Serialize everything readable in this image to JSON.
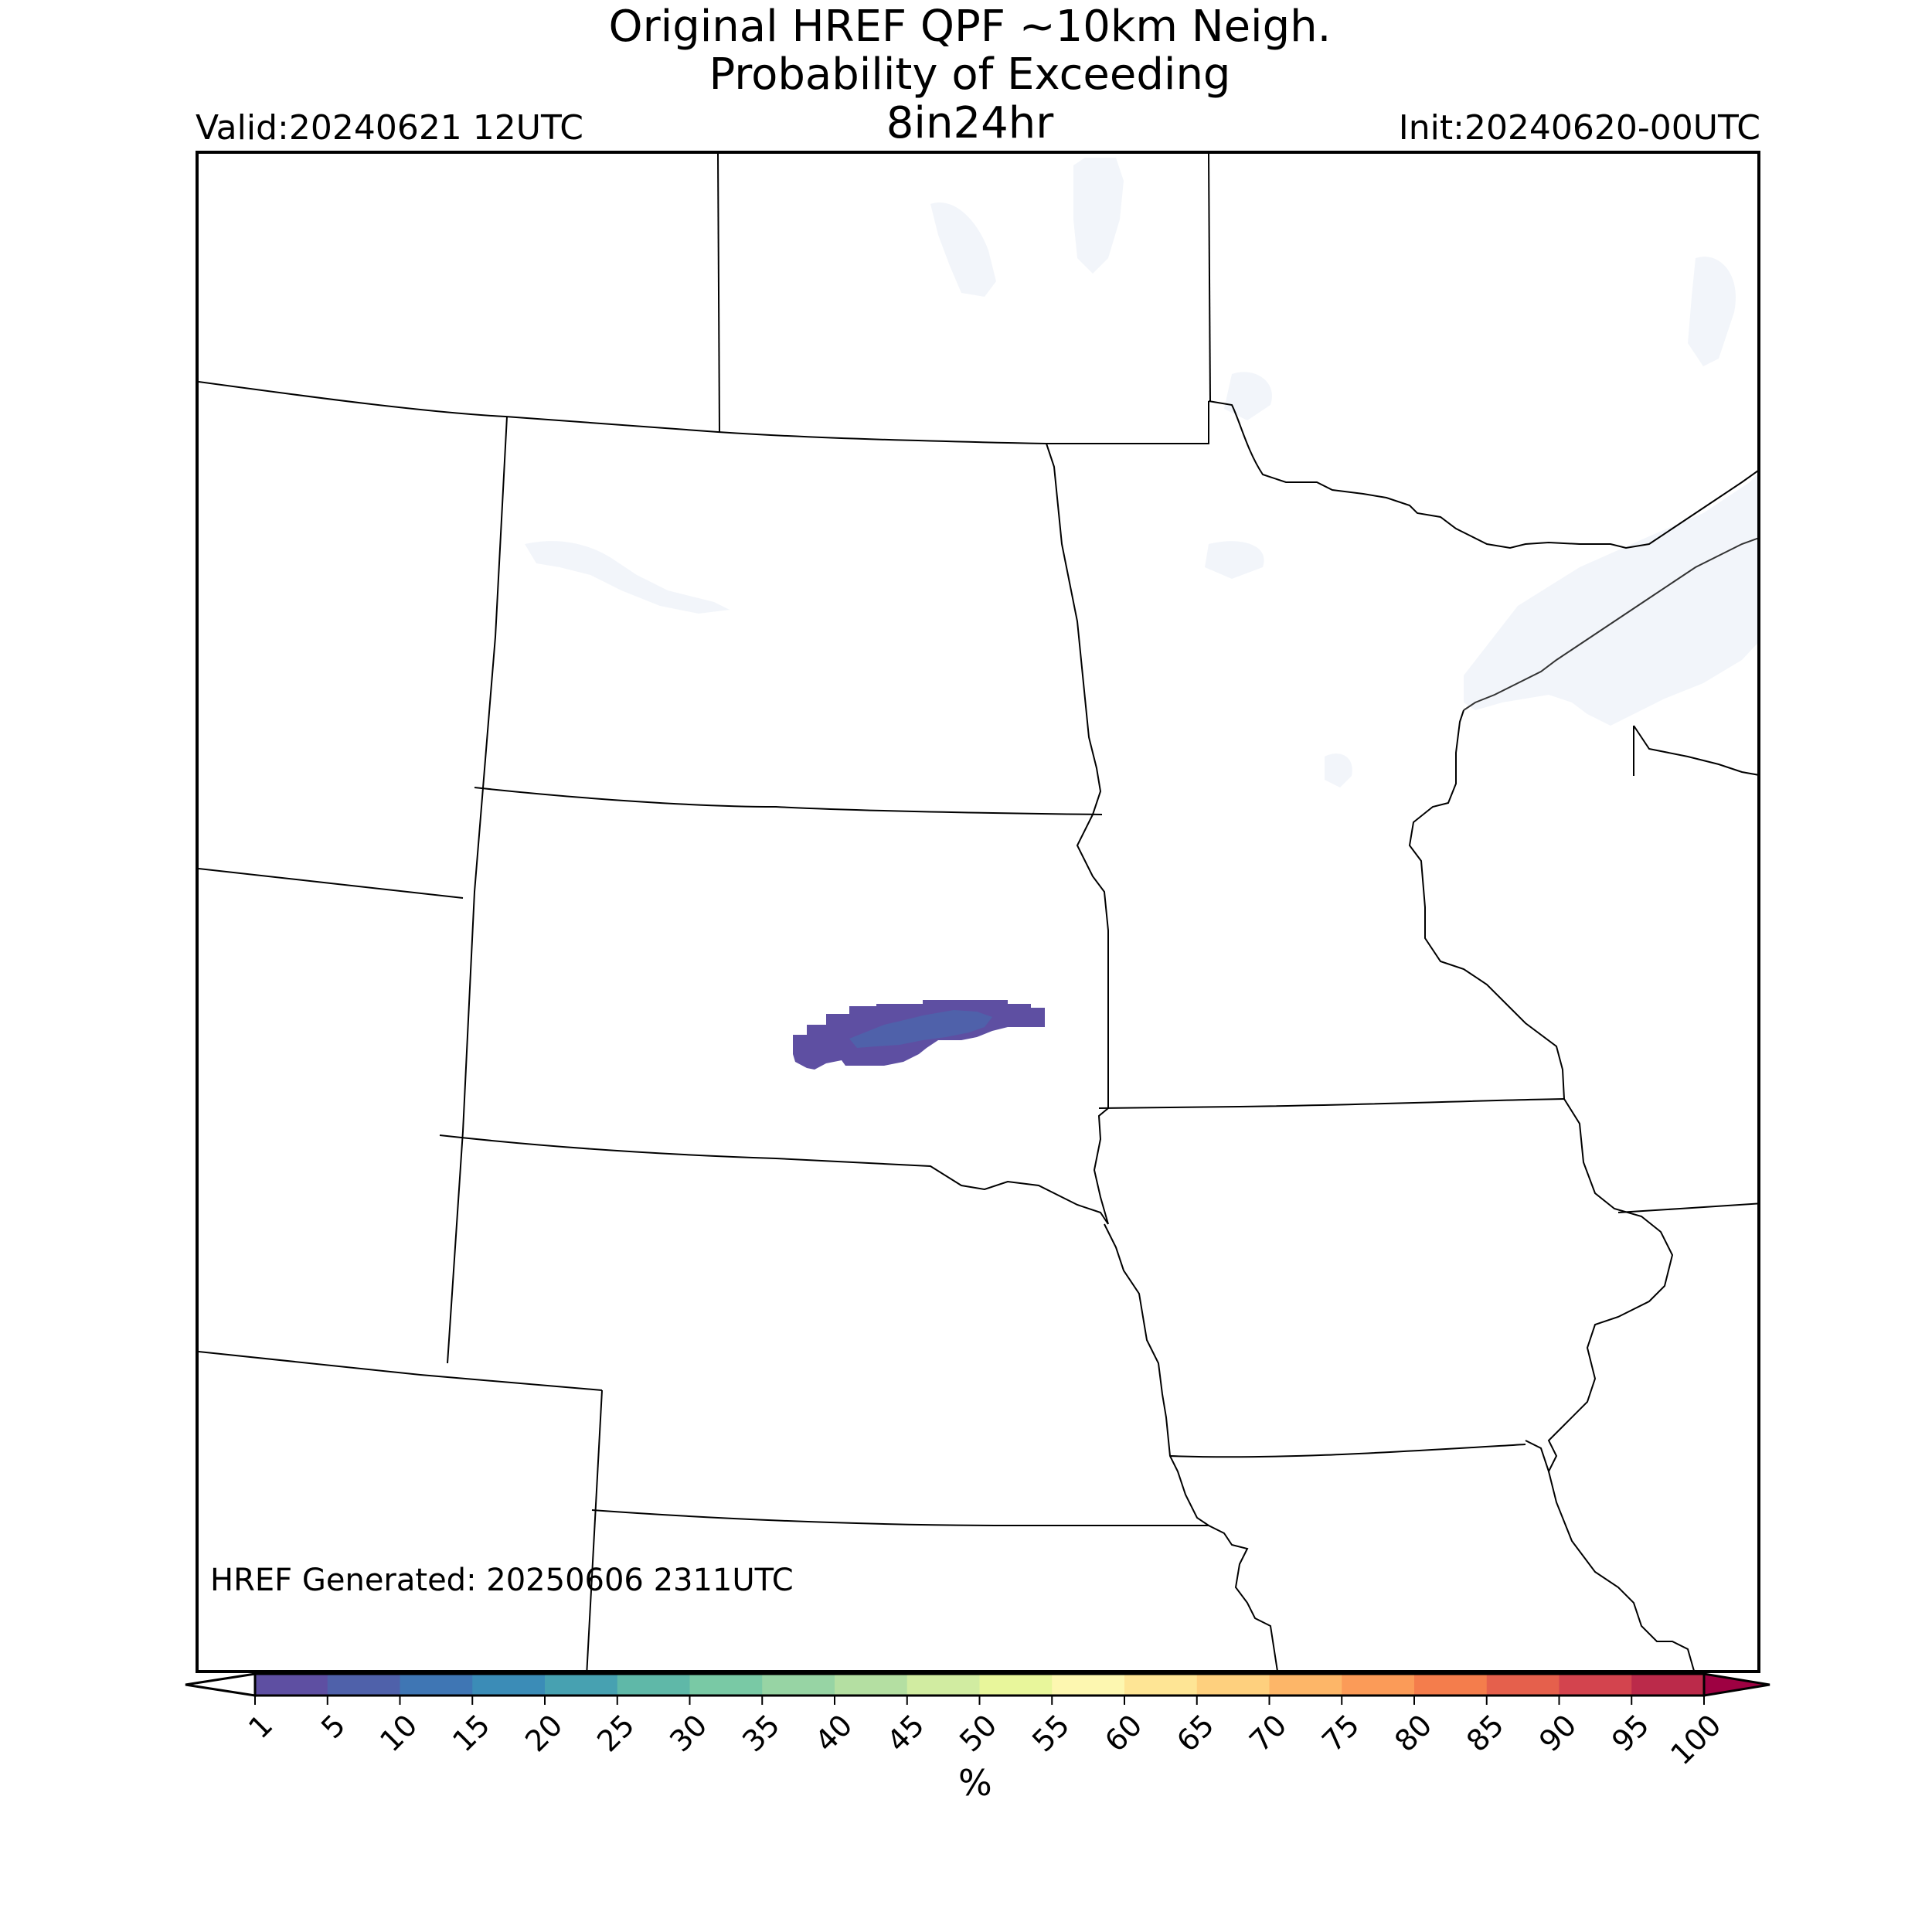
{
  "title": {
    "line1": "Original HREF QPF ~10km Neigh.",
    "line2": "Probability of Exceeding",
    "line3": "8in24hr"
  },
  "valid_label": "Valid:20240621 12UTC",
  "init_label": "Init:20240620-00UTC",
  "generated_label": "HREF Generated: 20250606 2311UTC",
  "colorbar": {
    "unit": "%",
    "ticks": [
      "1",
      "5",
      "10",
      "15",
      "20",
      "25",
      "30",
      "35",
      "40",
      "45",
      "50",
      "55",
      "60",
      "65",
      "70",
      "75",
      "80",
      "85",
      "90",
      "95",
      "100"
    ],
    "colors": [
      "#5e4fa2",
      "#4f61aa",
      "#3f76b4",
      "#3b8cb7",
      "#47a1b1",
      "#5fb8a8",
      "#79c9a5",
      "#97d4a4",
      "#b4dfa2",
      "#d1eca1",
      "#e8f69b",
      "#fdf7b0",
      "#fee595",
      "#fed07e",
      "#fdb668",
      "#fb9b58",
      "#f47d4c",
      "#e5604c",
      "#d3444e",
      "#bb2a4a",
      "#9e0142"
    ],
    "extend": "both",
    "left_extend_color": "#ffffff",
    "right_extend_color": "#9e0142"
  },
  "map": {
    "land_color": "#ffffff",
    "water_color": "#f2f5fa",
    "border_color": "#000000",
    "probability_area": {
      "category": "1-5%",
      "core_category": "5-10%"
    }
  }
}
